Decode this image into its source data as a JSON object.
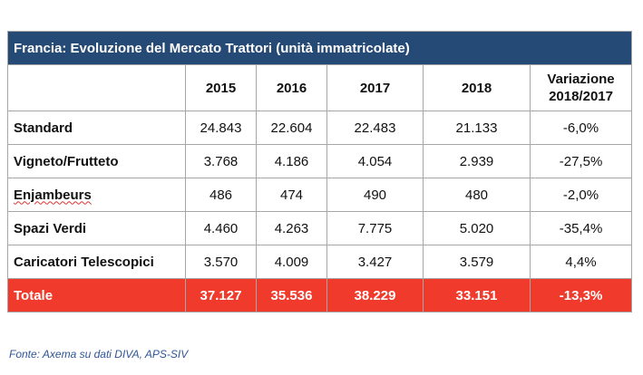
{
  "table": {
    "title": "Francia: Evoluzione del Mercato Trattori (unità immatricolate)",
    "header": {
      "corner": "",
      "years": [
        "2015",
        "2016",
        "2017",
        "2018"
      ],
      "variation_line1": "Variazione",
      "variation_line2": "2018/2017"
    },
    "rows": [
      {
        "label": "Standard",
        "values": [
          "24.843",
          "22.604",
          "22.483",
          "21.133"
        ],
        "variation": "-6,0%"
      },
      {
        "label": "Vigneto/Frutteto",
        "values": [
          "3.768",
          "4.186",
          "4.054",
          "2.939"
        ],
        "variation": "-27,5%"
      },
      {
        "label": "Enjambeurs",
        "values": [
          "486",
          "474",
          "490",
          "480"
        ],
        "variation": "-2,0%"
      },
      {
        "label": "Spazi Verdi",
        "values": [
          "4.460",
          "4.263",
          "7.775",
          "5.020"
        ],
        "variation": "-35,4%"
      },
      {
        "label": "Caricatori Telescopici",
        "values": [
          "3.570",
          "4.009",
          "3.427",
          "3.579"
        ],
        "variation": "4,4%"
      }
    ],
    "total": {
      "label": "Totale",
      "values": [
        "37.127",
        "35.536",
        "38.229",
        "33.151"
      ],
      "variation": "-13,3%"
    }
  },
  "source": "Fonte: Axema su dati DIVA, APS-SIV",
  "colors": {
    "title_bg": "#254a75",
    "total_bg": "#f03a2b",
    "source_text": "#2f5597"
  }
}
